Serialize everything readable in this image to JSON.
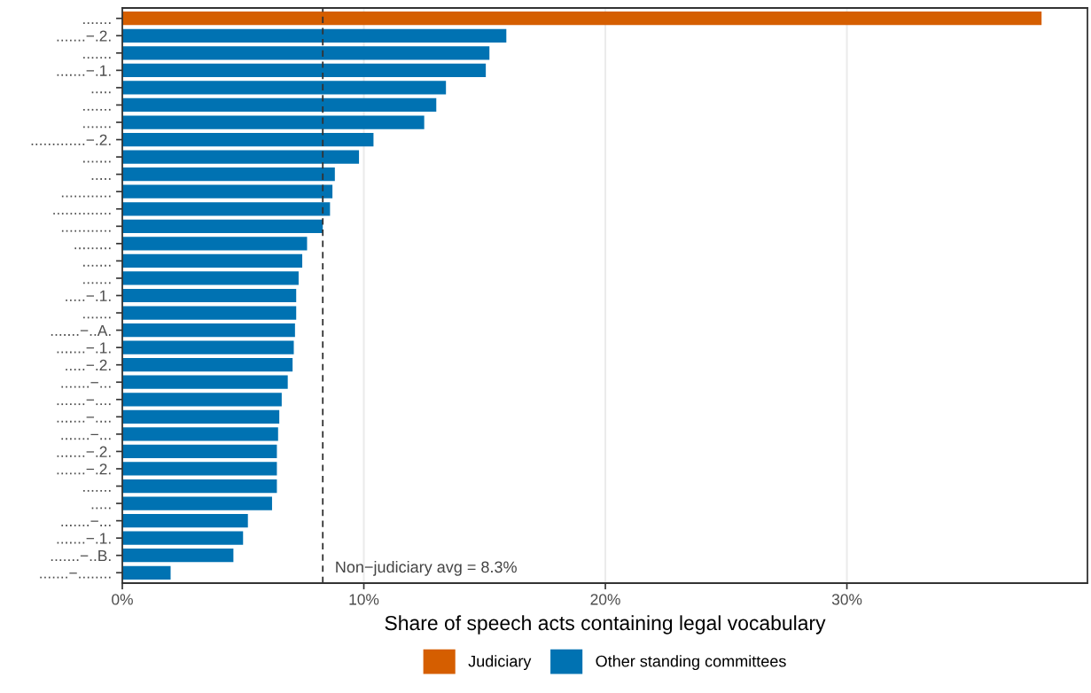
{
  "chart_data": {
    "type": "bar",
    "orientation": "horizontal",
    "xlabel": "Share of speech acts containing legal vocabulary",
    "categories": [
      ".......",
      ".......−.2.",
      ".......",
      ".......−.1.",
      ".....",
      ".......",
      ".......",
      ".............−.2.",
      ".......",
      ".....",
      "............",
      "..............",
      "............",
      ".........",
      ".......",
      ".......",
      ".....−.1.",
      ".......",
      ".......−..A.",
      ".......−.1.",
      ".....−.2.",
      ".......−...",
      ".......−....",
      ".......−....",
      ".......−...",
      ".......−.2.",
      ".......−.2.",
      ".......",
      ".....",
      ".......−...",
      ".......−.1.",
      ".......−..B.",
      ".......−........"
    ],
    "series": [
      {
        "name": "Judiciary",
        "color": "#d55e00",
        "values": [
          38.06,
          null,
          null,
          null,
          null,
          null,
          null,
          null,
          null,
          null,
          null,
          null,
          null,
          null,
          null,
          null,
          null,
          null,
          null,
          null,
          null,
          null,
          null,
          null,
          null,
          null,
          null,
          null,
          null,
          null,
          null,
          null,
          null
        ]
      },
      {
        "name": "Other standing committees",
        "color": "#0072b2",
        "values": [
          null,
          15.9,
          15.2,
          15.05,
          13.4,
          13.0,
          12.5,
          10.4,
          9.8,
          8.8,
          8.7,
          8.6,
          8.3,
          7.65,
          7.45,
          7.3,
          7.2,
          7.2,
          7.15,
          7.1,
          7.05,
          6.85,
          6.6,
          6.5,
          6.45,
          6.4,
          6.4,
          6.4,
          6.2,
          5.2,
          5.0,
          4.6,
          2.0
        ]
      }
    ],
    "xlim": [
      0,
      39.96
    ],
    "xticks": [
      {
        "value": 0,
        "label": "0%"
      },
      {
        "value": 10,
        "label": "10%"
      },
      {
        "value": 20,
        "label": "20%"
      },
      {
        "value": 30,
        "label": "30%"
      }
    ],
    "ref_lines": [
      {
        "axis": "x",
        "value": 8.3,
        "label": "Non−judiciary avg = 8.3%",
        "color": "#333333",
        "line_style": "dashed"
      }
    ],
    "grid": "x",
    "legend": "bottom"
  }
}
